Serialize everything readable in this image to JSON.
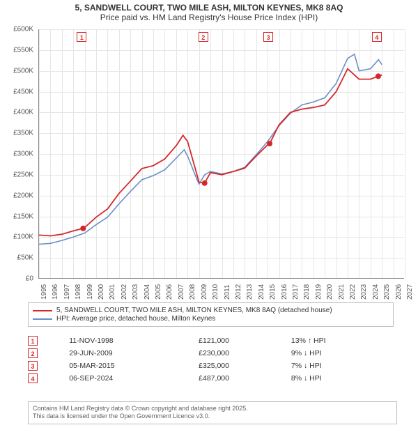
{
  "title": {
    "line1": "5, SANDWELL COURT, TWO MILE ASH, MILTON KEYNES, MK8 8AQ",
    "line2": "Price paid vs. HM Land Registry's House Price Index (HPI)"
  },
  "chart": {
    "type": "line",
    "background_color": "#ffffff",
    "grid_color": "#e6e6e6",
    "axis_color": "#888888",
    "tick_fontsize": 10,
    "xlim": [
      1995,
      2027
    ],
    "ylim": [
      0,
      600
    ],
    "y_ticks": [
      0,
      50,
      100,
      150,
      200,
      250,
      300,
      350,
      400,
      450,
      500,
      550,
      600
    ],
    "y_tick_labels": [
      "£0",
      "£50K",
      "£100K",
      "£150K",
      "£200K",
      "£250K",
      "£300K",
      "£350K",
      "£400K",
      "£450K",
      "£500K",
      "£550K",
      "£600K"
    ],
    "x_ticks": [
      1995,
      1996,
      1997,
      1998,
      1999,
      2000,
      2001,
      2002,
      2003,
      2004,
      2005,
      2006,
      2007,
      2008,
      2009,
      2010,
      2011,
      2012,
      2013,
      2014,
      2015,
      2016,
      2017,
      2018,
      2019,
      2020,
      2021,
      2022,
      2023,
      2024,
      2025,
      2026,
      2027
    ],
    "series": {
      "property": {
        "label": "5, SANDWELL COURT, TWO MILE ASH, MILTON KEYNES, MK8 8AQ (detached house)",
        "color": "#d62728",
        "line_width": 1.8,
        "data": [
          [
            1995,
            105
          ],
          [
            1996,
            103
          ],
          [
            1997,
            107
          ],
          [
            1998,
            115
          ],
          [
            1998.86,
            121
          ],
          [
            1999.2,
            128
          ],
          [
            2000,
            148
          ],
          [
            2001,
            168
          ],
          [
            2002,
            205
          ],
          [
            2003,
            235
          ],
          [
            2004,
            265
          ],
          [
            2005,
            272
          ],
          [
            2006,
            288
          ],
          [
            2007,
            320
          ],
          [
            2007.6,
            345
          ],
          [
            2008,
            330
          ],
          [
            2008.7,
            262
          ],
          [
            2009,
            232
          ],
          [
            2009.49,
            230
          ],
          [
            2010,
            255
          ],
          [
            2011,
            250
          ],
          [
            2012,
            258
          ],
          [
            2013,
            266
          ],
          [
            2014,
            295
          ],
          [
            2015,
            322
          ],
          [
            2015.18,
            325
          ],
          [
            2016,
            370
          ],
          [
            2017,
            400
          ],
          [
            2018,
            408
          ],
          [
            2019,
            412
          ],
          [
            2020,
            418
          ],
          [
            2021,
            450
          ],
          [
            2022,
            505
          ],
          [
            2023,
            480
          ],
          [
            2024,
            480
          ],
          [
            2024.68,
            487
          ],
          [
            2025,
            490
          ]
        ]
      },
      "hpi": {
        "label": "HPI: Average price, detached house, Milton Keynes",
        "color": "#6a8fc5",
        "line_width": 1.6,
        "data": [
          [
            1995,
            83
          ],
          [
            1996,
            85
          ],
          [
            1997,
            92
          ],
          [
            1998,
            100
          ],
          [
            1999,
            110
          ],
          [
            2000,
            130
          ],
          [
            2001,
            148
          ],
          [
            2002,
            180
          ],
          [
            2003,
            210
          ],
          [
            2004,
            238
          ],
          [
            2005,
            248
          ],
          [
            2006,
            262
          ],
          [
            2007,
            290
          ],
          [
            2007.7,
            310
          ],
          [
            2008,
            295
          ],
          [
            2008.8,
            240
          ],
          [
            2009,
            228
          ],
          [
            2009.5,
            250
          ],
          [
            2010,
            258
          ],
          [
            2011,
            252
          ],
          [
            2012,
            258
          ],
          [
            2013,
            268
          ],
          [
            2014,
            298
          ],
          [
            2015,
            330
          ],
          [
            2016,
            368
          ],
          [
            2017,
            398
          ],
          [
            2018,
            418
          ],
          [
            2019,
            425
          ],
          [
            2020,
            435
          ],
          [
            2021,
            470
          ],
          [
            2022,
            530
          ],
          [
            2022.6,
            540
          ],
          [
            2023,
            500
          ],
          [
            2024,
            505
          ],
          [
            2024.7,
            527
          ],
          [
            2025,
            515
          ]
        ]
      }
    },
    "markers": [
      {
        "idx": "1",
        "x": 1998.86,
        "y": 121
      },
      {
        "idx": "2",
        "x": 2009.49,
        "y": 230
      },
      {
        "idx": "3",
        "x": 2015.18,
        "y": 325
      },
      {
        "idx": "4",
        "x": 2024.68,
        "y": 487
      }
    ]
  },
  "legend_label_series": "series",
  "events": [
    {
      "idx": "1",
      "date": "11-NOV-1998",
      "price": "£121,000",
      "delta": "13% ↑ HPI"
    },
    {
      "idx": "2",
      "date": "29-JUN-2009",
      "price": "£230,000",
      "delta": "9% ↓ HPI"
    },
    {
      "idx": "3",
      "date": "05-MAR-2015",
      "price": "£325,000",
      "delta": "7% ↓ HPI"
    },
    {
      "idx": "4",
      "date": "06-SEP-2024",
      "price": "£487,000",
      "delta": "8% ↓ HPI"
    }
  ],
  "footer": {
    "line1": "Contains HM Land Registry data © Crown copyright and database right 2025.",
    "line2": "This data is licensed under the Open Government Licence v3.0."
  }
}
